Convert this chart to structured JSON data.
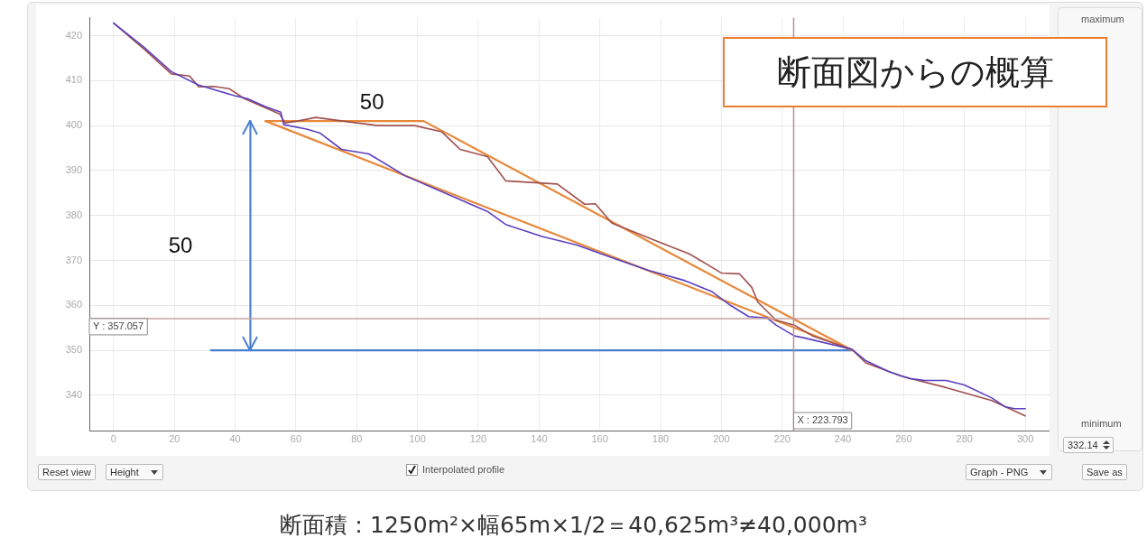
{
  "chart_data": {
    "type": "line",
    "title": "断面図からの概算",
    "xlim": [
      -8,
      308
    ],
    "xticks": [
      0,
      20,
      40,
      60,
      80,
      100,
      120,
      140,
      160,
      180,
      200,
      220,
      240,
      260,
      280,
      300
    ],
    "ylim": [
      332.14,
      424
    ],
    "yticks": [
      340,
      350,
      360,
      370,
      380,
      390,
      400,
      410,
      420
    ],
    "grid": true,
    "legend": false,
    "marker": "none",
    "line_style": "solid",
    "series": [
      {
        "color": "#5b3fbf",
        "x": [
          0,
          10,
          19,
          28,
          40,
          44,
          50,
          55,
          56,
          63.5,
          68,
          75,
          84,
          96,
          111,
          123,
          129,
          141,
          152.5,
          164,
          176,
          188,
          197,
          203,
          209,
          215,
          218,
          224,
          227,
          243,
          247.5,
          255,
          262,
          267,
          274,
          280,
          289,
          293.5,
          296.5,
          300
        ],
        "values": [
          422.8,
          417.4,
          412,
          409,
          406.6,
          406,
          404.2,
          403,
          400.2,
          399.2,
          398.3,
          394.7,
          393.7,
          388.8,
          384.4,
          380.9,
          378,
          375.3,
          373.4,
          370.6,
          367.8,
          365.5,
          363,
          360,
          357.5,
          357.2,
          355.6,
          353.2,
          352.8,
          350.2,
          347.7,
          345.3,
          343.7,
          343.3,
          343.3,
          342.3,
          339.4,
          337.4,
          337,
          337
        ]
      },
      {
        "color": "#a0504f",
        "x": [
          0,
          10,
          19,
          25,
          28,
          33,
          38,
          43,
          54.6,
          56.4,
          60.5,
          66.5,
          75.4,
          87,
          99,
          108,
          114,
          123,
          129,
          146,
          155,
          158.5,
          164,
          179,
          189.6,
          200,
          206,
          210,
          212,
          218,
          224,
          230,
          243,
          247.5,
          259,
          274,
          289,
          300
        ],
        "values": [
          422.8,
          417,
          411.5,
          411,
          408.6,
          408.7,
          408.2,
          406,
          402.6,
          400.6,
          401,
          401.8,
          401,
          400,
          400,
          398.6,
          394.7,
          393.1,
          387.7,
          387,
          382.5,
          382.6,
          378.3,
          374.2,
          371.4,
          367.2,
          367,
          364,
          360.7,
          356.7,
          355.6,
          353.2,
          350.2,
          347.2,
          344.3,
          341.7,
          338.8,
          335.4
        ]
      },
      {
        "color": "#e8883a",
        "x": [
          50,
          102,
          243
        ],
        "values": [
          401,
          401,
          350
        ]
      },
      {
        "color": "#e8883a",
        "x": [
          50,
          243
        ],
        "values": [
          401,
          350
        ]
      },
      {
        "color": "#4a7fd0",
        "x": [
          32,
          243
        ],
        "values": [
          350,
          350
        ]
      },
      {
        "color": "#4a7fd0",
        "x": [
          45,
          45
        ],
        "values": [
          350,
          401
        ]
      }
    ],
    "ref_lines": [
      {
        "axis": "y",
        "value": 357.057,
        "label": "Y : 357.057",
        "color": "#c9a0a0"
      },
      {
        "axis": "x",
        "value": 223.793,
        "label": "X : 223.793",
        "color": "#b89090"
      }
    ],
    "annotations": [
      "断面積：1250m²×幅65m×1/2＝40,625m³≠40,000m³",
      "Reset view",
      "Height",
      "Interpolated profile",
      "Graph - PNG",
      "Save as",
      "maximum",
      "minimum",
      "332.14",
      "50",
      "50"
    ]
  }
}
